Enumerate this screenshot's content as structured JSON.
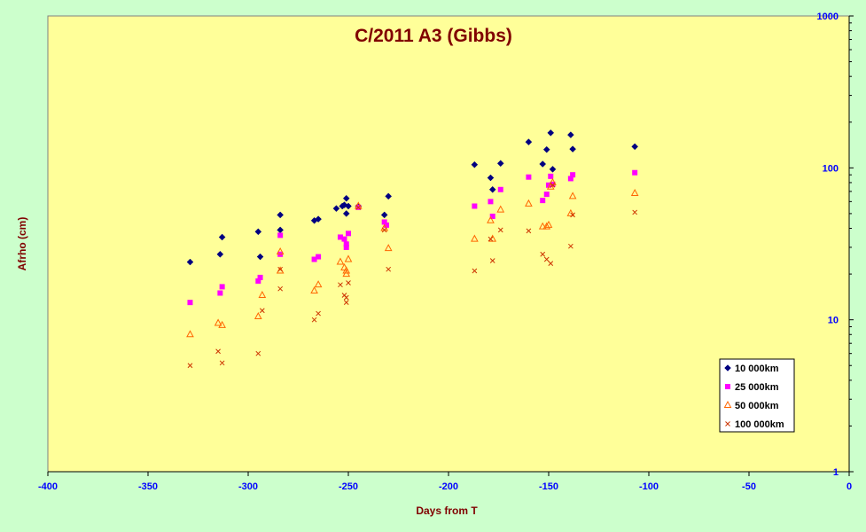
{
  "chart_data": {
    "type": "scatter",
    "title": "C/2011 A3 (Gibbs)",
    "xlabel": "Days from T",
    "ylabel": "Afrho (cm)",
    "xlim": [
      -400,
      0
    ],
    "ylim": [
      1,
      1000
    ],
    "y_scale": "log",
    "x_ticks": [
      -400,
      -350,
      -300,
      -250,
      -200,
      -150,
      -100,
      -50,
      0
    ],
    "y_ticks": [
      1,
      10,
      100,
      1000
    ],
    "x_tick_labels": [
      "-400",
      "-350",
      "-300",
      "-250",
      "-200",
      "-150",
      "-100",
      "-50",
      "0"
    ],
    "y_tick_labels": [
      "1",
      "10",
      "100",
      "1000"
    ],
    "grid": false,
    "legend_position": "bottom-right",
    "plot_background": "#ffff99",
    "outer_background": "#ccffcc",
    "series": [
      {
        "name": "10 000km",
        "marker": "diamond",
        "color": "#000080",
        "x": [
          -329,
          -314,
          -313,
          -295,
          -294,
          -284,
          -284,
          -267,
          -265,
          -256,
          -253,
          -252,
          -251,
          -251,
          -250,
          -245,
          -232,
          -230,
          -187,
          -179,
          -178,
          -174,
          -160,
          -153,
          -151,
          -149,
          -148,
          -139,
          -138,
          -107
        ],
        "y": [
          24,
          27,
          35,
          38,
          26,
          49,
          39,
          45,
          46,
          54,
          56,
          57,
          50,
          63,
          56,
          56,
          49,
          65,
          105,
          86,
          72,
          107,
          148,
          106,
          132,
          170,
          98,
          165,
          133,
          138
        ]
      },
      {
        "name": "25 000km",
        "marker": "square",
        "color": "#ff00ff",
        "x": [
          -329,
          -314,
          -313,
          -295,
          -294,
          -284,
          -284,
          -267,
          -265,
          -254,
          -252,
          -251,
          -251,
          -250,
          -245,
          -232,
          -231,
          -187,
          -179,
          -178,
          -174,
          -160,
          -153,
          -151,
          -150,
          -149,
          -148,
          -139,
          -138,
          -107
        ],
        "y": [
          13,
          15,
          16.5,
          18,
          19,
          36,
          27,
          25,
          26,
          35,
          34,
          30,
          31.5,
          37,
          55,
          44,
          42,
          56,
          60,
          48,
          72,
          87,
          61,
          67,
          77,
          88,
          78,
          85,
          90,
          93
        ]
      },
      {
        "name": "50 000km",
        "marker": "triangle",
        "color": "#ff6600",
        "x": [
          -329,
          -315,
          -313,
          -295,
          -293,
          -284,
          -284,
          -267,
          -265,
          -254,
          -252,
          -251,
          -251,
          -250,
          -245,
          -232,
          -230,
          -187,
          -179,
          -178,
          -174,
          -160,
          -153,
          -151,
          -150,
          -149,
          -148,
          -139,
          -138,
          -107
        ],
        "y": [
          8,
          9.5,
          9.2,
          10.5,
          14.5,
          21,
          28,
          15.5,
          17,
          24,
          22,
          21,
          20,
          25,
          56,
          40,
          29.5,
          34,
          45,
          34,
          53,
          58,
          41,
          41,
          42,
          75,
          80,
          50,
          65,
          68
        ]
      },
      {
        "name": "100 000km",
        "marker": "x",
        "color": "#cc3300",
        "x": [
          -329,
          -315,
          -313,
          -295,
          -293,
          -284,
          -284,
          -267,
          -265,
          -254,
          -252,
          -251,
          -251,
          -250,
          -245,
          -232,
          -230,
          -187,
          -179,
          -178,
          -174,
          -160,
          -153,
          -151,
          -149,
          -148,
          -139,
          -138,
          -107
        ],
        "y": [
          5,
          6.2,
          5.2,
          6,
          11.5,
          21.5,
          16,
          10,
          11,
          17,
          14.5,
          14,
          13,
          17.5,
          55,
          39,
          21.5,
          21,
          34,
          24.5,
          39,
          38.5,
          27,
          25,
          23.5,
          77,
          30.5,
          49,
          51
        ]
      }
    ]
  }
}
